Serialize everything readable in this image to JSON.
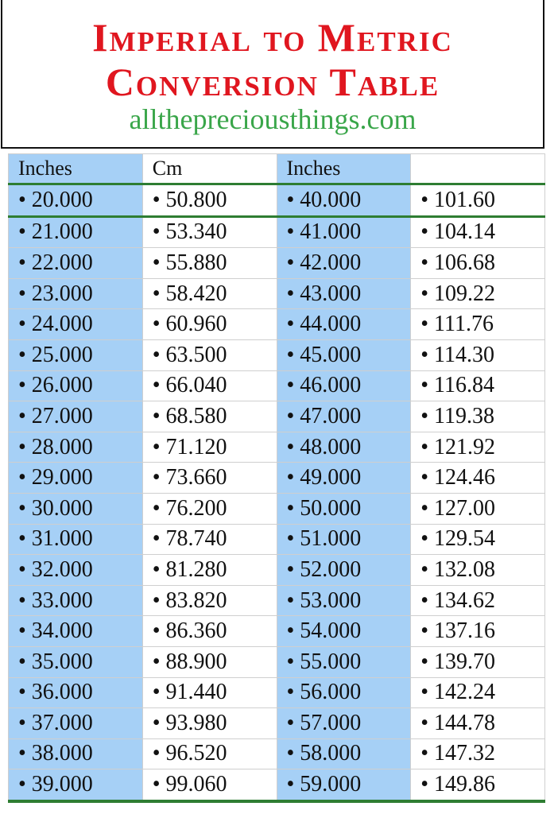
{
  "title": {
    "line1": "Imperial to Metric",
    "line2": "Conversion Table",
    "website": "allthepreciousthings.com"
  },
  "colors": {
    "title": "#e0161f",
    "website": "#3aa64a",
    "inches_column_bg": "#a6d0f6",
    "rule": "#2e7d32"
  },
  "table": {
    "headers": [
      "Inches",
      "Cm",
      "Inches",
      ""
    ],
    "rows": [
      [
        "• 20.000",
        "• 50.800",
        "• 40.000",
        "• 101.60"
      ],
      [
        "• 21.000",
        "• 53.340",
        "• 41.000",
        "• 104.14"
      ],
      [
        "• 22.000",
        "• 55.880",
        "• 42.000",
        "• 106.68"
      ],
      [
        "• 23.000",
        "• 58.420",
        "• 43.000",
        "• 109.22"
      ],
      [
        "• 24.000",
        "• 60.960",
        "• 44.000",
        "• 111.76"
      ],
      [
        "• 25.000",
        "• 63.500",
        "• 45.000",
        "• 114.30"
      ],
      [
        "• 26.000",
        "• 66.040",
        "• 46.000",
        "• 116.84"
      ],
      [
        "• 27.000",
        "• 68.580",
        "• 47.000",
        "• 119.38"
      ],
      [
        "• 28.000",
        "• 71.120",
        "• 48.000",
        "• 121.92"
      ],
      [
        "• 29.000",
        "• 73.660",
        "• 49.000",
        "• 124.46"
      ],
      [
        "• 30.000",
        "• 76.200",
        "• 50.000",
        "• 127.00"
      ],
      [
        "• 31.000",
        "• 78.740",
        "• 51.000",
        "• 129.54"
      ],
      [
        "• 32.000",
        "• 81.280",
        "• 52.000",
        "• 132.08"
      ],
      [
        "• 33.000",
        "• 83.820",
        "• 53.000",
        "• 134.62"
      ],
      [
        "• 34.000",
        "• 86.360",
        "• 54.000",
        "• 137.16"
      ],
      [
        "• 35.000",
        "• 88.900",
        "• 55.000",
        "• 139.70"
      ],
      [
        "• 36.000",
        "• 91.440",
        "• 56.000",
        "• 142.24"
      ],
      [
        "• 37.000",
        "• 93.980",
        "• 57.000",
        "• 144.78"
      ],
      [
        "• 38.000",
        "• 96.520",
        "• 58.000",
        "• 147.32"
      ],
      [
        "• 39.000",
        "• 99.060",
        "• 59.000",
        "• 149.86"
      ]
    ]
  }
}
